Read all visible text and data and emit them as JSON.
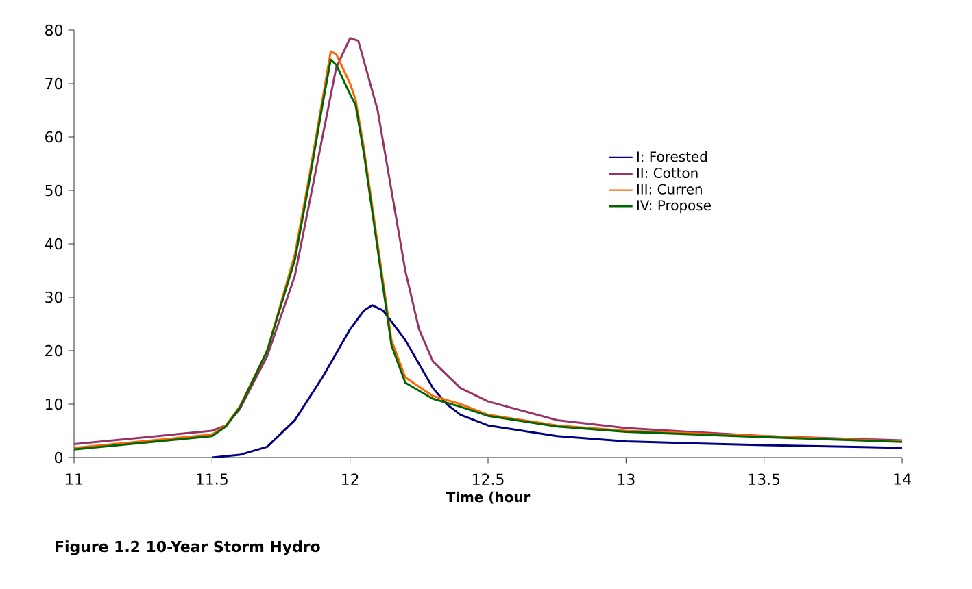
{
  "chart_data": {
    "type": "line",
    "xlabel": "Time (hour",
    "annotations": [
      "Figure 1.2  10-Year  Storm Hydro"
    ],
    "xlim": [
      11,
      14
    ],
    "ylim": [
      0,
      80
    ],
    "xticks": [
      11,
      11.5,
      12,
      12.5,
      13,
      13.5,
      14
    ],
    "yticks": [
      0,
      10,
      20,
      30,
      40,
      50,
      60,
      70,
      80
    ],
    "grid": false,
    "legend": "right",
    "marker": "none",
    "line_style": "solid",
    "series": [
      {
        "name": "I: Forested",
        "color": "#000080",
        "x": [
          11.5,
          11.6,
          11.7,
          11.8,
          11.9,
          12.0,
          12.05,
          12.08,
          12.12,
          12.2,
          12.3,
          12.35,
          12.4,
          12.5,
          12.75,
          13.0,
          13.5,
          14.0
        ],
        "values": [
          0,
          0.5,
          2,
          7,
          15,
          24,
          27.5,
          28.5,
          27.5,
          22,
          13,
          10,
          8,
          6,
          4,
          3,
          2.3,
          1.8
        ]
      },
      {
        "name": "II: Cotton",
        "color": "#993366",
        "x": [
          11.0,
          11.5,
          11.55,
          11.6,
          11.7,
          11.8,
          11.9,
          11.95,
          12.0,
          12.03,
          12.1,
          12.15,
          12.2,
          12.25,
          12.3,
          12.4,
          12.5,
          12.75,
          13.0,
          13.5,
          14.0
        ],
        "values": [
          2.5,
          5,
          6,
          9,
          19,
          34,
          60,
          73,
          78.5,
          78,
          65,
          50,
          35,
          24,
          18,
          13,
          10.5,
          7,
          5.5,
          4,
          3.2
        ]
      },
      {
        "name": "III:  Curren",
        "color": "#ff6600",
        "x": [
          11.0,
          11.5,
          11.55,
          11.6,
          11.7,
          11.8,
          11.85,
          11.9,
          11.93,
          11.95,
          12.0,
          12.02,
          12.05,
          12.1,
          12.15,
          12.2,
          12.3,
          12.4,
          12.5,
          12.75,
          13.0,
          13.5,
          14.0
        ],
        "values": [
          1.8,
          4.3,
          6,
          9.5,
          20,
          38,
          52,
          67,
          76,
          75.5,
          70,
          67,
          58,
          40,
          22,
          15,
          11.5,
          10,
          8,
          6,
          5,
          4,
          3
        ]
      },
      {
        "name": "IV: Propose",
        "color": "#006600",
        "x": [
          11.0,
          11.5,
          11.55,
          11.6,
          11.7,
          11.8,
          11.85,
          11.9,
          11.93,
          11.95,
          12.0,
          12.02,
          12.05,
          12.1,
          12.15,
          12.2,
          12.3,
          12.4,
          12.5,
          12.75,
          13.0,
          13.5,
          14.0
        ],
        "values": [
          1.5,
          4,
          5.8,
          9.3,
          20,
          37,
          51,
          66,
          74.5,
          73.5,
          68,
          66,
          57,
          39,
          21,
          14,
          11,
          9.5,
          7.8,
          5.8,
          4.8,
          3.8,
          2.9
        ]
      }
    ]
  }
}
